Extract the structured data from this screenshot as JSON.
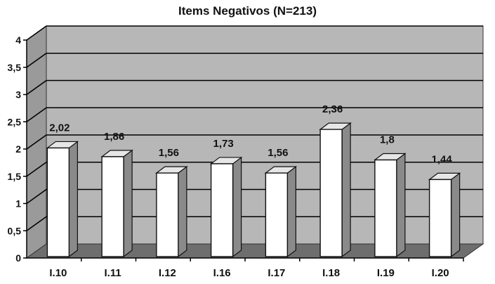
{
  "chart_data": {
    "type": "bar",
    "title": "Items Negativos (N=213)",
    "categories": [
      "I.10",
      "I.11",
      "I.12",
      "I.16",
      "I.17",
      "I.18",
      "I.19",
      "I.20"
    ],
    "values": [
      2.02,
      1.86,
      1.56,
      1.73,
      1.56,
      2.36,
      1.8,
      1.44
    ],
    "data_labels": [
      "2,02",
      "1,86",
      "1,56",
      "1,73",
      "1,56",
      "2,36",
      "1,8",
      "1,44"
    ],
    "y_ticks": [
      "0",
      "0,5",
      "1",
      "1,5",
      "2",
      "2,5",
      "3",
      "3,5",
      "4"
    ],
    "ylim": [
      0,
      4
    ],
    "grid": true,
    "style": "3d-bar",
    "colors": {
      "back_wall": "#b7b7b7",
      "floor": "#6e6e6e",
      "bar_front": "#ffffff",
      "bar_side": "#8a8a8a",
      "bar_top": "#e6e6e6",
      "gridline": "#000000"
    }
  }
}
